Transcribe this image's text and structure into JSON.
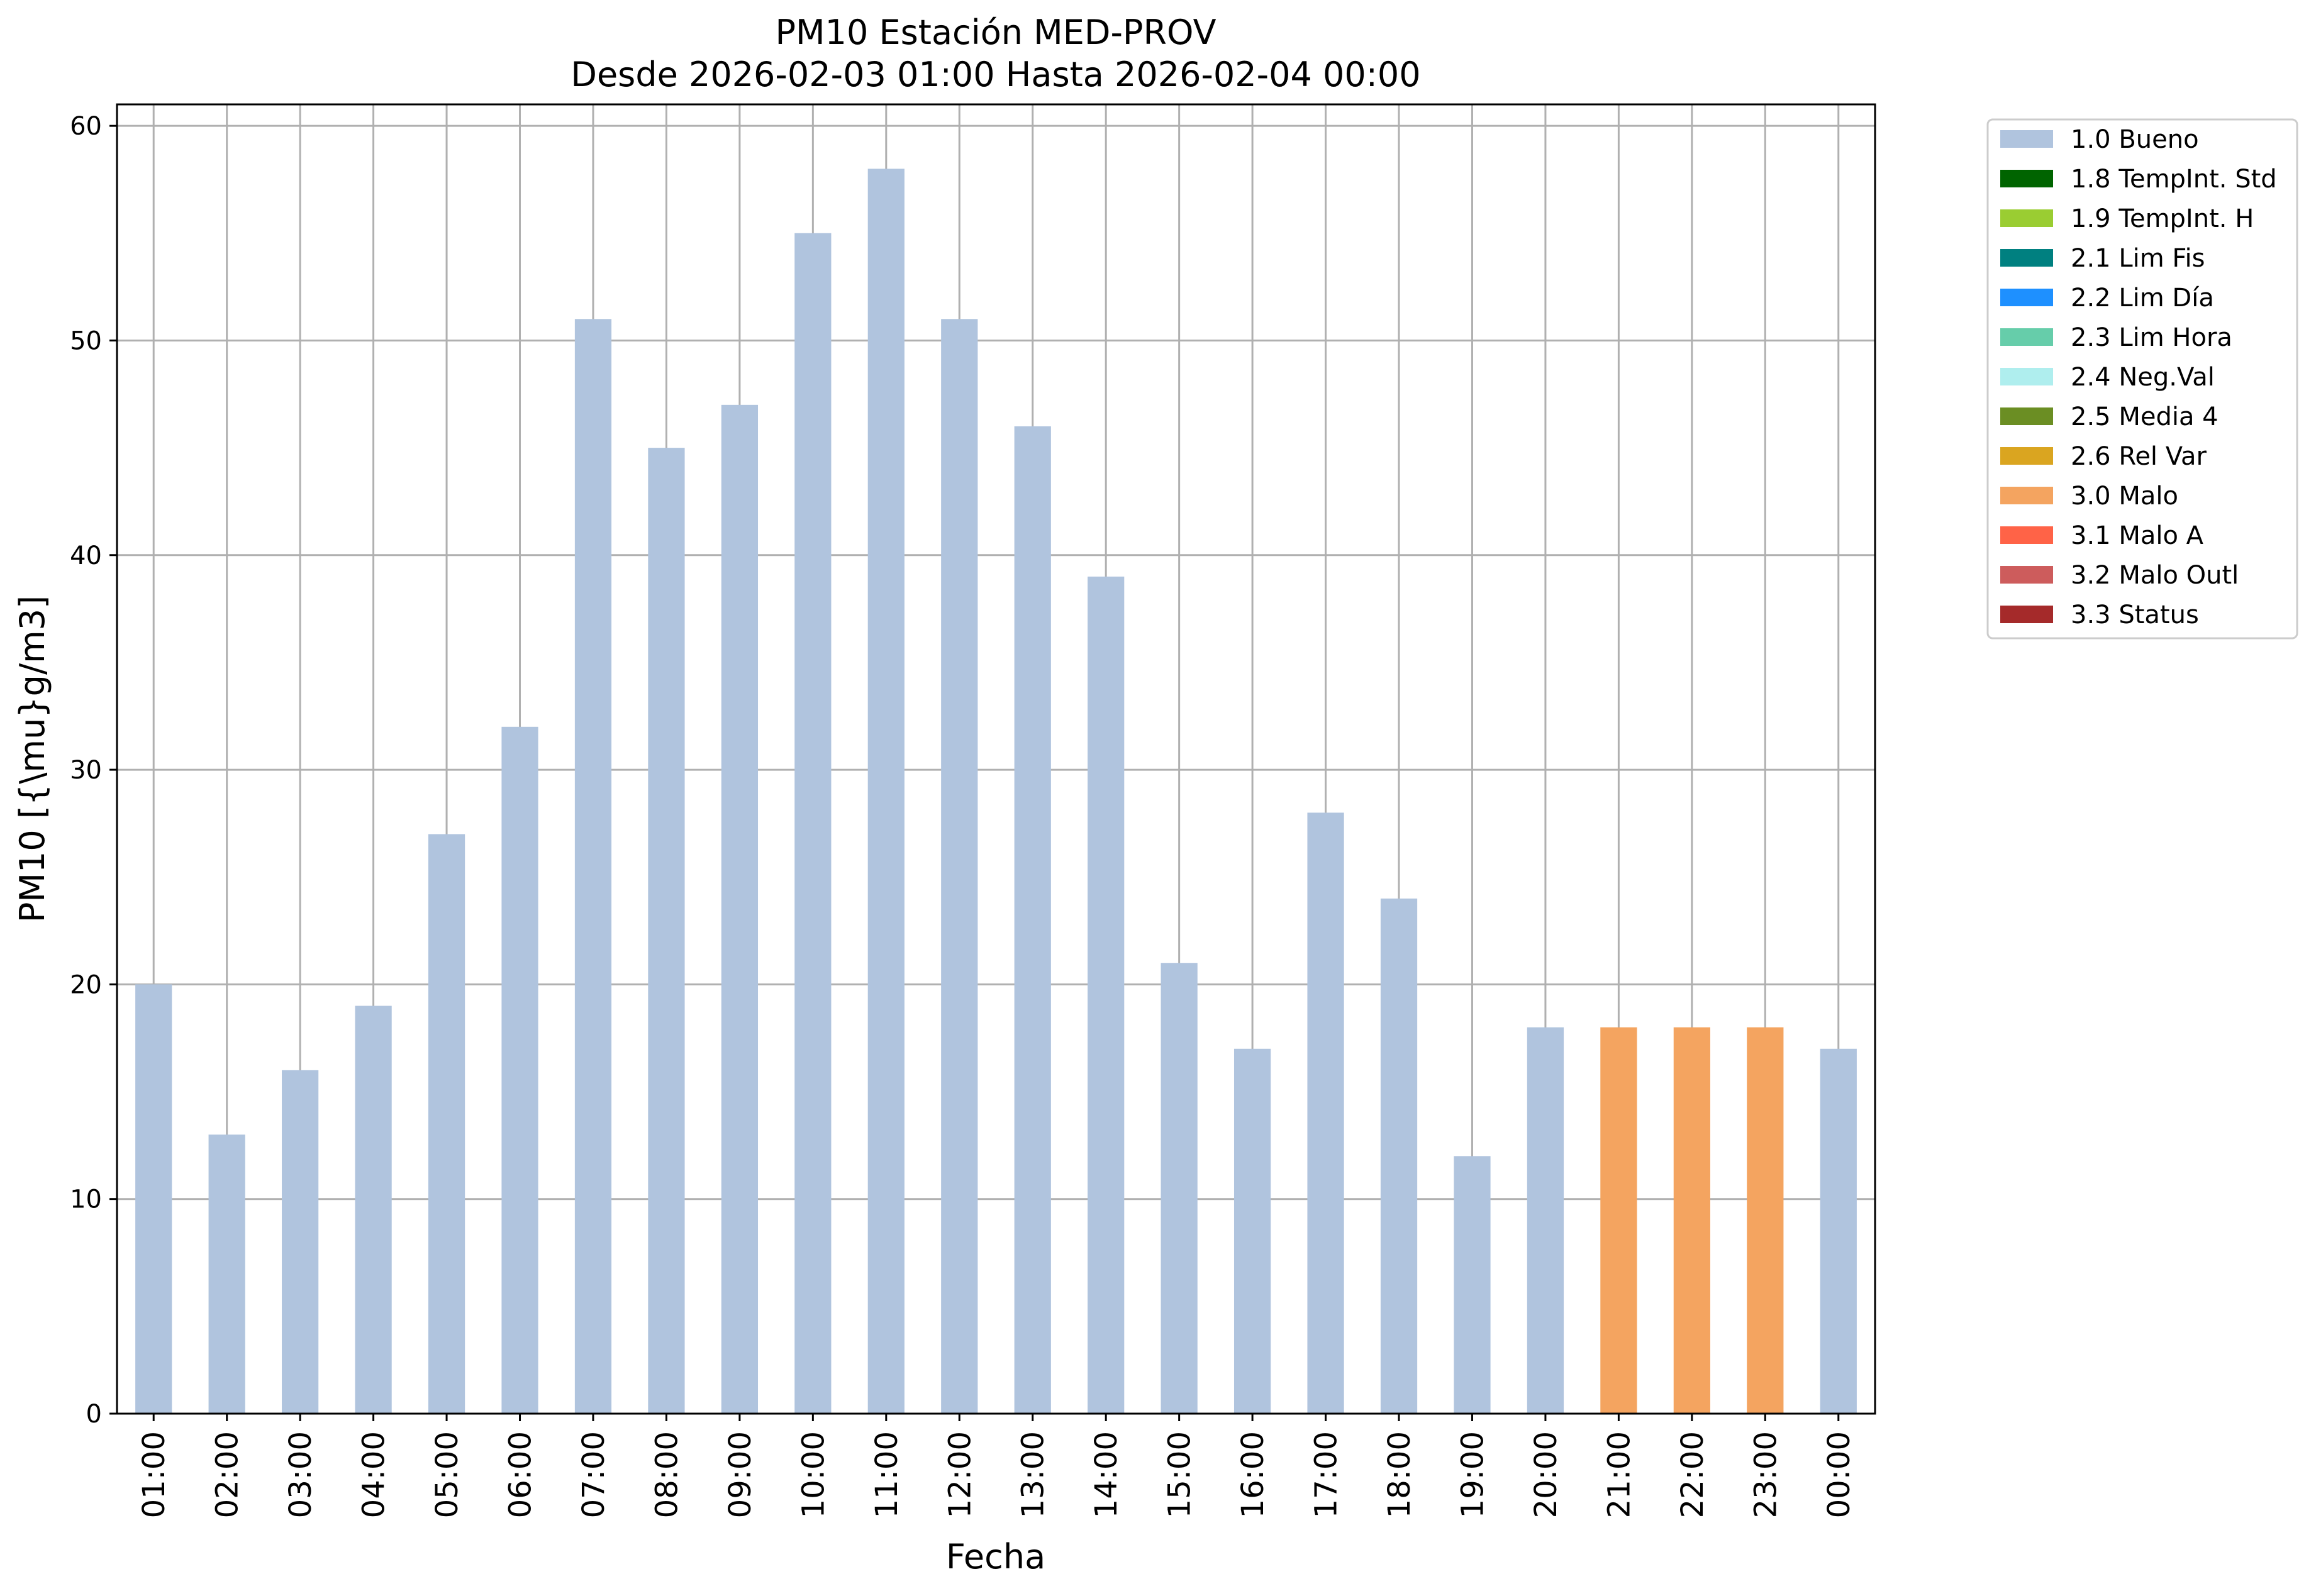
{
  "chart_data": {
    "type": "bar",
    "title": "PM10 Estación MED-PROV",
    "subtitle": "Desde 2026-02-03 01:00 Hasta 2026-02-04 00:00",
    "xlabel": "Fecha",
    "ylabel": "PM10 [{\\mu}g/m3]",
    "ylim": [
      0,
      61
    ],
    "yticks": [
      0,
      10,
      20,
      30,
      40,
      50,
      60
    ],
    "grid": true,
    "legend_position": "outside-top-right",
    "categories": [
      "01:00",
      "02:00",
      "03:00",
      "04:00",
      "05:00",
      "06:00",
      "07:00",
      "08:00",
      "09:00",
      "10:00",
      "11:00",
      "12:00",
      "13:00",
      "14:00",
      "15:00",
      "16:00",
      "17:00",
      "18:00",
      "19:00",
      "20:00",
      "21:00",
      "22:00",
      "23:00",
      "00:00"
    ],
    "values": [
      20,
      13,
      16,
      19,
      27,
      32,
      51,
      45,
      47,
      55,
      58,
      51,
      46,
      39,
      21,
      17,
      28,
      24,
      12,
      18,
      18,
      18,
      18,
      17
    ],
    "flags": [
      "1.0 Bueno",
      "1.0 Bueno",
      "1.0 Bueno",
      "1.0 Bueno",
      "1.0 Bueno",
      "1.0 Bueno",
      "1.0 Bueno",
      "1.0 Bueno",
      "1.0 Bueno",
      "1.0 Bueno",
      "1.0 Bueno",
      "1.0 Bueno",
      "1.0 Bueno",
      "1.0 Bueno",
      "1.0 Bueno",
      "1.0 Bueno",
      "1.0 Bueno",
      "1.0 Bueno",
      "1.0 Bueno",
      "1.0 Bueno",
      "3.0 Malo",
      "3.0 Malo",
      "3.0 Malo",
      "1.0 Bueno"
    ],
    "legend": [
      {
        "label": "1.0 Bueno",
        "color": "#b0c4de"
      },
      {
        "label": "1.8 TempInt. Std",
        "color": "#006400"
      },
      {
        "label": "1.9 TempInt. H",
        "color": "#9acd32"
      },
      {
        "label": "2.1 Lim Fis",
        "color": "#008080"
      },
      {
        "label": "2.2 Lim Día",
        "color": "#1e90ff"
      },
      {
        "label": "2.3 Lim Hora",
        "color": "#66cdaa"
      },
      {
        "label": "2.4 Neg.Val",
        "color": "#afeeee"
      },
      {
        "label": "2.5 Media 4",
        "color": "#6b8e23"
      },
      {
        "label": "2.6 Rel Var",
        "color": "#daa520"
      },
      {
        "label": "3.0 Malo",
        "color": "#f4a460"
      },
      {
        "label": "3.1 Malo A",
        "color": "#ff6347"
      },
      {
        "label": "3.2 Malo Outl",
        "color": "#cd5c5c"
      },
      {
        "label": "3.3 Status",
        "color": "#a52a2a"
      }
    ]
  }
}
